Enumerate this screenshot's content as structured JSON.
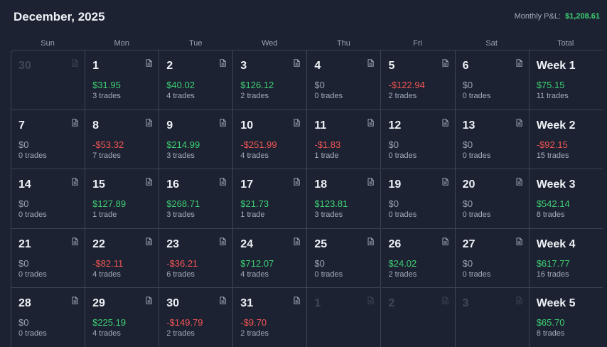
{
  "header": {
    "title": "December, 2025",
    "pnl_label": "Monthly P&L:",
    "pnl_value": "$1,208.61"
  },
  "days_of_week": [
    "Sun",
    "Mon",
    "Tue",
    "Wed",
    "Thu",
    "Fri",
    "Sat",
    "Total"
  ],
  "weeks": [
    {
      "days": [
        {
          "day": "30",
          "dim": true,
          "amount": "",
          "trades": "",
          "sign": "zero"
        },
        {
          "day": "1",
          "amount": "$31.95",
          "trades": "3 trades",
          "sign": "pos"
        },
        {
          "day": "2",
          "amount": "$40.02",
          "trades": "4 trades",
          "sign": "pos"
        },
        {
          "day": "3",
          "amount": "$126.12",
          "trades": "2 trades",
          "sign": "pos"
        },
        {
          "day": "4",
          "amount": "$0",
          "trades": "0 trades",
          "sign": "zero"
        },
        {
          "day": "5",
          "amount": "-$122.94",
          "trades": "2 trades",
          "sign": "neg"
        },
        {
          "day": "6",
          "amount": "$0",
          "trades": "0 trades",
          "sign": "zero"
        }
      ],
      "total": {
        "label": "Week 1",
        "amount": "$75.15",
        "trades": "11 trades",
        "sign": "pos"
      }
    },
    {
      "days": [
        {
          "day": "7",
          "amount": "$0",
          "trades": "0 trades",
          "sign": "zero"
        },
        {
          "day": "8",
          "amount": "-$53.32",
          "trades": "7 trades",
          "sign": "neg"
        },
        {
          "day": "9",
          "amount": "$214.99",
          "trades": "3 trades",
          "sign": "pos"
        },
        {
          "day": "10",
          "amount": "-$251.99",
          "trades": "4 trades",
          "sign": "neg"
        },
        {
          "day": "11",
          "amount": "-$1.83",
          "trades": "1 trade",
          "sign": "neg"
        },
        {
          "day": "12",
          "amount": "$0",
          "trades": "0 trades",
          "sign": "zero"
        },
        {
          "day": "13",
          "amount": "$0",
          "trades": "0 trades",
          "sign": "zero"
        }
      ],
      "total": {
        "label": "Week 2",
        "amount": "-$92.15",
        "trades": "15 trades",
        "sign": "neg"
      }
    },
    {
      "days": [
        {
          "day": "14",
          "amount": "$0",
          "trades": "0 trades",
          "sign": "zero"
        },
        {
          "day": "15",
          "amount": "$127.89",
          "trades": "1 trade",
          "sign": "pos"
        },
        {
          "day": "16",
          "amount": "$268.71",
          "trades": "3 trades",
          "sign": "pos"
        },
        {
          "day": "17",
          "amount": "$21.73",
          "trades": "1 trade",
          "sign": "pos"
        },
        {
          "day": "18",
          "amount": "$123.81",
          "trades": "3 trades",
          "sign": "pos"
        },
        {
          "day": "19",
          "amount": "$0",
          "trades": "0 trades",
          "sign": "zero"
        },
        {
          "day": "20",
          "amount": "$0",
          "trades": "0 trades",
          "sign": "zero"
        }
      ],
      "total": {
        "label": "Week 3",
        "amount": "$542.14",
        "trades": "8 trades",
        "sign": "pos"
      }
    },
    {
      "days": [
        {
          "day": "21",
          "amount": "$0",
          "trades": "0 trades",
          "sign": "zero"
        },
        {
          "day": "22",
          "amount": "-$82.11",
          "trades": "4 trades",
          "sign": "neg"
        },
        {
          "day": "23",
          "amount": "-$36.21",
          "trades": "6 trades",
          "sign": "neg"
        },
        {
          "day": "24",
          "amount": "$712.07",
          "trades": "4 trades",
          "sign": "pos"
        },
        {
          "day": "25",
          "amount": "$0",
          "trades": "0 trades",
          "sign": "zero"
        },
        {
          "day": "26",
          "amount": "$24.02",
          "trades": "2 trades",
          "sign": "pos"
        },
        {
          "day": "27",
          "amount": "$0",
          "trades": "0 trades",
          "sign": "zero"
        }
      ],
      "total": {
        "label": "Week 4",
        "amount": "$617.77",
        "trades": "16 trades",
        "sign": "pos"
      }
    },
    {
      "days": [
        {
          "day": "28",
          "amount": "$0",
          "trades": "0 trades",
          "sign": "zero"
        },
        {
          "day": "29",
          "amount": "$225.19",
          "trades": "4 trades",
          "sign": "pos"
        },
        {
          "day": "30",
          "amount": "-$149.79",
          "trades": "2 trades",
          "sign": "neg"
        },
        {
          "day": "31",
          "amount": "-$9.70",
          "trades": "2 trades",
          "sign": "neg"
        },
        {
          "day": "1",
          "dim": true,
          "amount": "",
          "trades": "",
          "sign": "zero"
        },
        {
          "day": "2",
          "dim": true,
          "amount": "",
          "trades": "",
          "sign": "zero"
        },
        {
          "day": "3",
          "dim": true,
          "amount": "",
          "trades": "",
          "sign": "zero"
        }
      ],
      "total": {
        "label": "Week 5",
        "amount": "$65.70",
        "trades": "8 trades",
        "sign": "pos"
      }
    }
  ]
}
